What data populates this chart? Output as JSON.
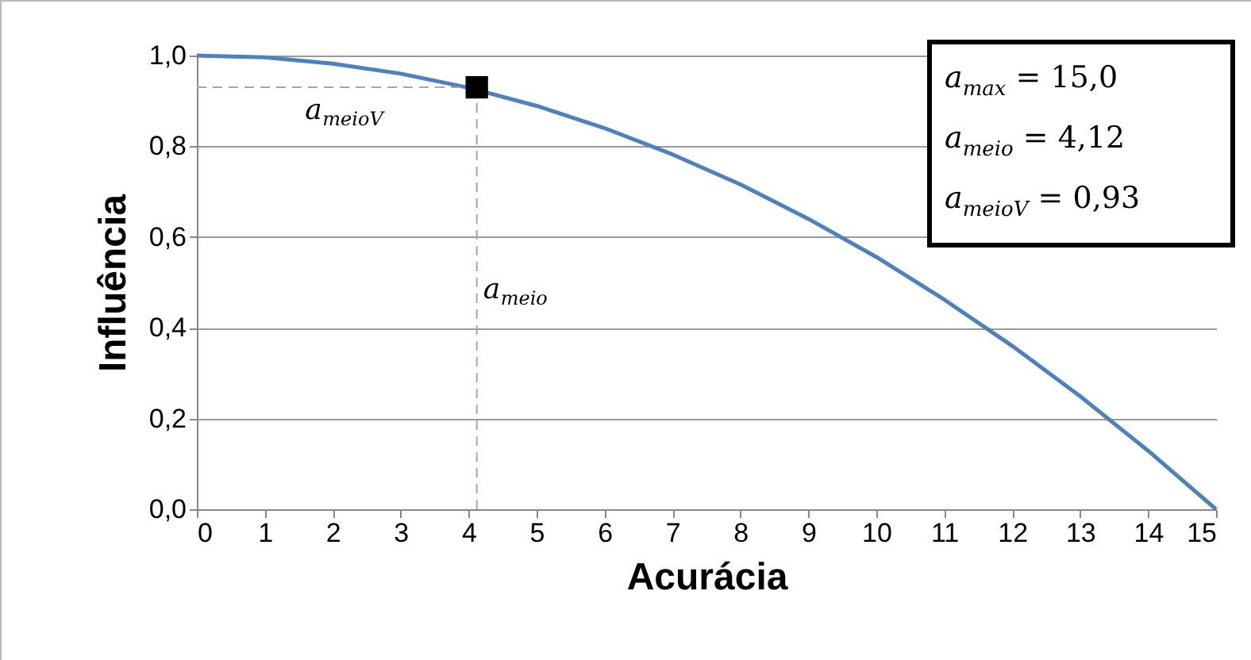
{
  "chart_data": {
    "type": "line",
    "xlabel": "Acurácia",
    "ylabel": "Influência",
    "xlim": [
      0,
      15
    ],
    "xticks": [
      0,
      1,
      2,
      3,
      4,
      5,
      6,
      7,
      8,
      9,
      10,
      11,
      12,
      13,
      14,
      15
    ],
    "ylim": [
      0,
      1
    ],
    "yticks": [
      {
        "value": 0,
        "label": "0,0"
      },
      {
        "value": 0.2,
        "label": "0,2"
      },
      {
        "value": 0.4,
        "label": "0,4"
      },
      {
        "value": 0.6,
        "label": "0,6"
      },
      {
        "value": 0.8,
        "label": "0,8"
      },
      {
        "value": 1,
        "label": "1,0"
      }
    ],
    "grid": "y",
    "series": [
      {
        "color": "#4f81bd",
        "line_style": "solid",
        "marker": "none",
        "x": [
          0,
          1,
          2,
          3,
          4,
          5,
          6,
          7,
          8,
          9,
          10,
          11,
          12,
          13,
          14,
          15
        ],
        "values": [
          1.0,
          0.996,
          0.982,
          0.96,
          0.929,
          0.889,
          0.84,
          0.782,
          0.716,
          0.64,
          0.556,
          0.462,
          0.36,
          0.249,
          0.129,
          0.0
        ]
      },
      {
        "type": "line",
        "name": "a$_{meioV}$",
        "color": "#a6a6a6",
        "line_style": "dashed",
        "marker": "none",
        "x": [
          0,
          4.12
        ],
        "values": [
          0.93,
          0.93
        ]
      },
      {
        "type": "line",
        "name": "a$_{meio}$",
        "color": "#a6a6a6",
        "line_style": "dashed",
        "marker": "none",
        "x": [
          4.12,
          4.12
        ],
        "values": [
          0,
          0.93
        ]
      },
      {
        "type": "scatter",
        "color": "#000000",
        "marker": "square",
        "x": [
          4.12
        ],
        "values": [
          0.93
        ]
      }
    ],
    "annotations": [
      "a$_{max}$ = 15,0",
      "a$_{meio}$ = 4,12",
      "a$_{meioV}$ = 0,93"
    ]
  }
}
